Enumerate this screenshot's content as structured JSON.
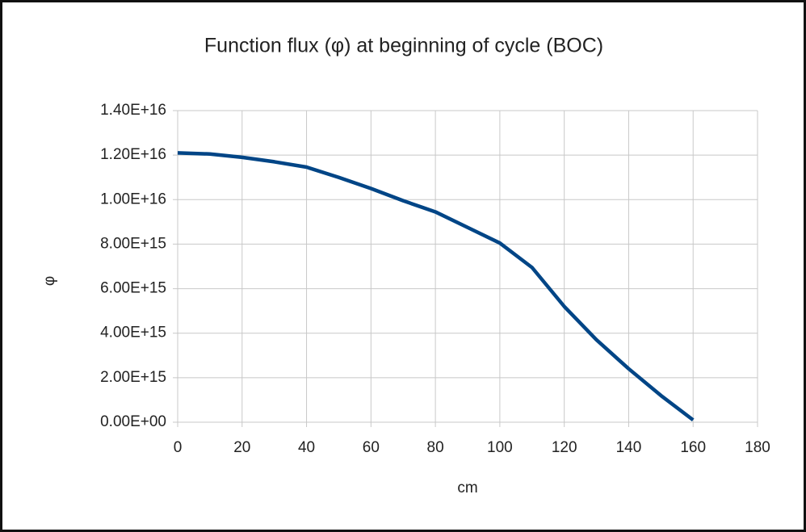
{
  "chart_data": {
    "type": "line",
    "title": "Function flux (φ) at beginning of cycle (BOC)",
    "x_label": "cm",
    "y_label": "φ",
    "x": [
      0,
      10,
      20,
      30,
      40,
      50,
      60,
      70,
      80,
      90,
      100,
      110,
      120,
      130,
      140,
      150,
      160
    ],
    "series": [
      {
        "name": "φ",
        "color": "#004586",
        "values": [
          1.21e+16,
          1.205e+16,
          1.19e+16,
          1.17e+16,
          1.146e+16,
          1.1e+16,
          1.05e+16,
          9950000000000000.0,
          9450000000000000.0,
          8750000000000000.0,
          8050000000000000.0,
          6950000000000000.0,
          5200000000000000.0,
          3700000000000000.0,
          2400000000000000.0,
          1200000000000000.0,
          100000000000000.0
        ]
      }
    ],
    "xlim": [
      0,
      180
    ],
    "xticks": [
      0,
      20,
      40,
      60,
      80,
      100,
      120,
      140,
      160,
      180
    ],
    "ylim": [
      0,
      1.4e+16
    ],
    "yticks": [
      {
        "value": 0,
        "label": "0.00E+00"
      },
      {
        "value": 2000000000000000.0,
        "label": "2.00E+15"
      },
      {
        "value": 4000000000000000.0,
        "label": "4.00E+15"
      },
      {
        "value": 6000000000000000.0,
        "label": "6.00E+15"
      },
      {
        "value": 8000000000000000.0,
        "label": "8.00E+15"
      },
      {
        "value": 1e+16,
        "label": "1.00E+16"
      },
      {
        "value": 1.2e+16,
        "label": "1.20E+16"
      },
      {
        "value": 1.4e+16,
        "label": "1.40E+16"
      }
    ],
    "grid": true
  }
}
